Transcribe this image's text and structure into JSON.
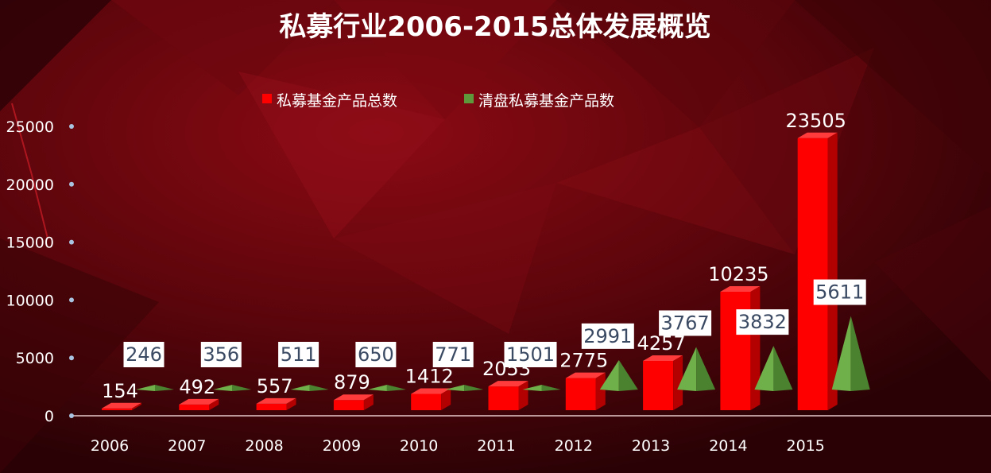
{
  "chart_data": {
    "type": "bar",
    "title": "私募行业2006-2015总体发展概览",
    "categories": [
      "2006",
      "2007",
      "2008",
      "2009",
      "2010",
      "2011",
      "2012",
      "2013",
      "2014",
      "2015"
    ],
    "series": [
      {
        "name": "私募基金产品总数",
        "values": [
          154,
          492,
          557,
          879,
          1412,
          2053,
          2775,
          4257,
          10235,
          23505
        ],
        "color": "#ff0000",
        "shape": "bar3d"
      },
      {
        "name": "清盘私募基金产品数",
        "values": [
          246,
          356,
          511,
          650,
          771,
          1501,
          2991,
          3767,
          3832,
          5611
        ],
        "color": "#5e9a3c",
        "shape": "pyramid"
      }
    ],
    "yticks": [
      "0",
      "5000",
      "10000",
      "15000",
      "20000",
      "25000"
    ],
    "ylim": [
      0,
      25000
    ],
    "grid": false,
    "legend_position": "top"
  }
}
